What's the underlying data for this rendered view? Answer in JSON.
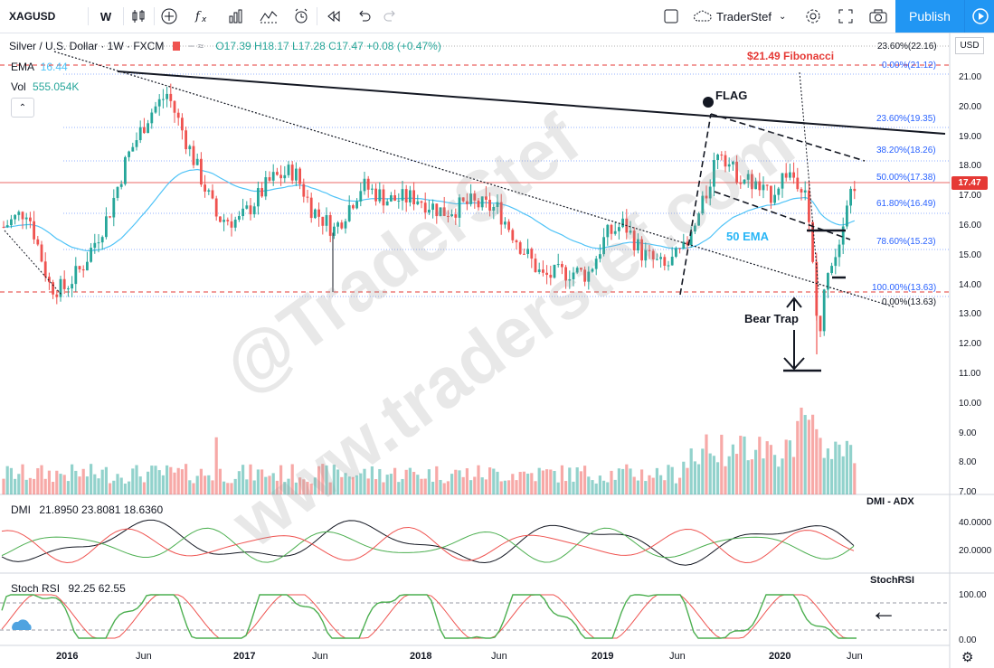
{
  "toolbar": {
    "symbol": "XAGUSD",
    "interval": "W",
    "layout_name": "TraderStef",
    "publish_label": "Publish",
    "icons": [
      "candles-icon",
      "add-icon",
      "indicator-fx-icon",
      "bar-chart-icon",
      "compare-icon",
      "alert-icon",
      "replay-icon",
      "undo-icon",
      "redo-icon",
      "fullscreen-icon",
      "settings-icon",
      "expand-icon",
      "camera-icon",
      "play-icon"
    ]
  },
  "legend": {
    "title": "Silver / U.S. Dollar · 1W · FXCM",
    "ohlc": "O17.39 H18.17 L17.28 C17.47 +0.08 (+0.47%)",
    "ema_label": "EMA",
    "ema_value": "16.44",
    "vol_label": "Vol",
    "vol_value": "555.054K"
  },
  "price_axis": {
    "currency": "USD",
    "last_price": "17.47",
    "ticks": [
      "21.00",
      "20.00",
      "19.00",
      "18.00",
      "17.00",
      "16.00",
      "15.00",
      "14.00",
      "13.00",
      "12.00",
      "11.00",
      "10.00",
      "9.00",
      "8.00",
      "7.00"
    ]
  },
  "time_axis": {
    "ticks": [
      "2016",
      "Jun",
      "2017",
      "Jun",
      "2018",
      "Jun",
      "2019",
      "Jun",
      "2020",
      "Jun"
    ]
  },
  "annotations": {
    "fibonacci_target": "$21.49 Fibonacci",
    "flag": "FLAG",
    "ema_label": "50 EMA",
    "bear_trap": "Bear Trap",
    "dmi_title": "DMI - ADX",
    "stoch_title": "StochRSI",
    "fib_right": [
      {
        "text": "23.60%(22.16)"
      },
      {
        "text": "0.00%(21.12)"
      },
      {
        "text": "23.60%(19.35)"
      },
      {
        "text": "38.20%(18.26)"
      },
      {
        "text": "50.00%(17.38)"
      },
      {
        "text": "61.80%(16.49)"
      },
      {
        "text": "78.60%(15.23)"
      },
      {
        "text": "100.00%(13.63)"
      },
      {
        "text": "0.00%(13.63)"
      }
    ]
  },
  "dmi": {
    "label": "DMI",
    "values": "21.8950  23.8081  18.6360",
    "ticks": [
      "40.0000",
      "20.0000"
    ]
  },
  "stoch": {
    "label": "Stoch RSI",
    "values": "92.25  62.55",
    "ticks": [
      "100.00",
      "0.00"
    ]
  },
  "watermarks": [
    "@TraderStef",
    "www.traderstef.com"
  ],
  "colors": {
    "accent": "#2196f3",
    "bull": "#26a69a",
    "bear": "#ef5350",
    "ema": "#4fc3f7",
    "fib": "#2962ff"
  }
}
